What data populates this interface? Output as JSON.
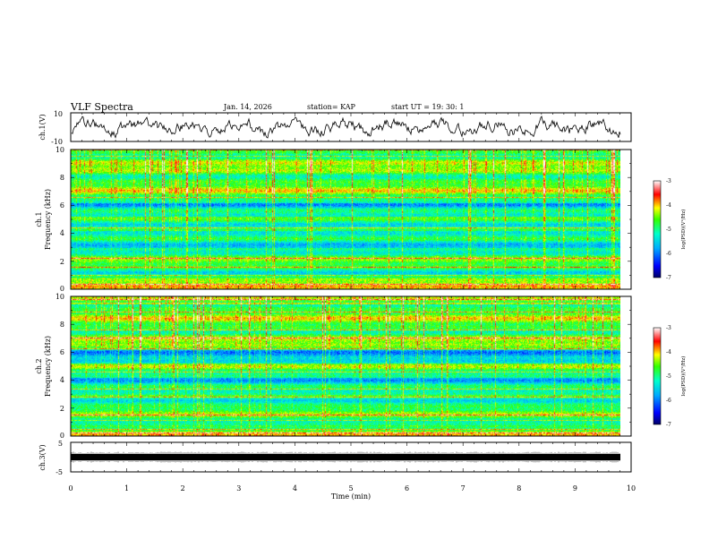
{
  "header": {
    "title": "VLF Spectra",
    "date": "Jan. 14, 2026",
    "station": "station= KAP",
    "start": "start  UT  =   19: 30: 1"
  },
  "colors": {
    "low": "#0000ff",
    "mid": "#00ff88",
    "high": "#ff0000"
  },
  "chart_data": [
    {
      "type": "line",
      "name": "ch1-waveform",
      "ylabel": "ch.1(V)",
      "ylim": [
        -10,
        10
      ],
      "yticks": [
        "10",
        "-10"
      ],
      "xlim": [
        0,
        10
      ],
      "grid": false
    },
    {
      "type": "heatmap",
      "name": "ch1-spectrogram",
      "ylabel_line1": "ch.1",
      "ylabel_line2": "Frequency (kHz)",
      "ylim": [
        0,
        10
      ],
      "yticks": [
        "0",
        "2",
        "4",
        "6",
        "8",
        "10"
      ],
      "xlim": [
        0,
        10
      ],
      "colorbar": {
        "label": "log(PSD)(V²/Hz)",
        "range": [
          -7,
          -3
        ],
        "ticks": [
          "-3",
          "-4",
          "-5",
          "-6",
          "-7"
        ]
      }
    },
    {
      "type": "heatmap",
      "name": "ch2-spectrogram",
      "ylabel_line1": "ch.2",
      "ylabel_line2": "Frequency (kHz)",
      "ylim": [
        0,
        10
      ],
      "yticks": [
        "0",
        "2",
        "4",
        "6",
        "8",
        "10"
      ],
      "xlim": [
        0,
        10
      ],
      "colorbar": {
        "label": "log(PSD)(V²/Hz)",
        "range": [
          -7,
          -3
        ],
        "ticks": [
          "-3",
          "-4",
          "-5",
          "-6",
          "-7"
        ]
      }
    },
    {
      "type": "line",
      "name": "ch3-waveform",
      "ylabel": "ch.3(V)",
      "ylim": [
        -5,
        5
      ],
      "yticks": [
        "5",
        "-5"
      ],
      "xlim": [
        0,
        10
      ],
      "xlabel": "Time (min)",
      "xticks": [
        "0",
        "1",
        "2",
        "3",
        "4",
        "5",
        "6",
        "7",
        "8",
        "9",
        "10"
      ]
    }
  ]
}
